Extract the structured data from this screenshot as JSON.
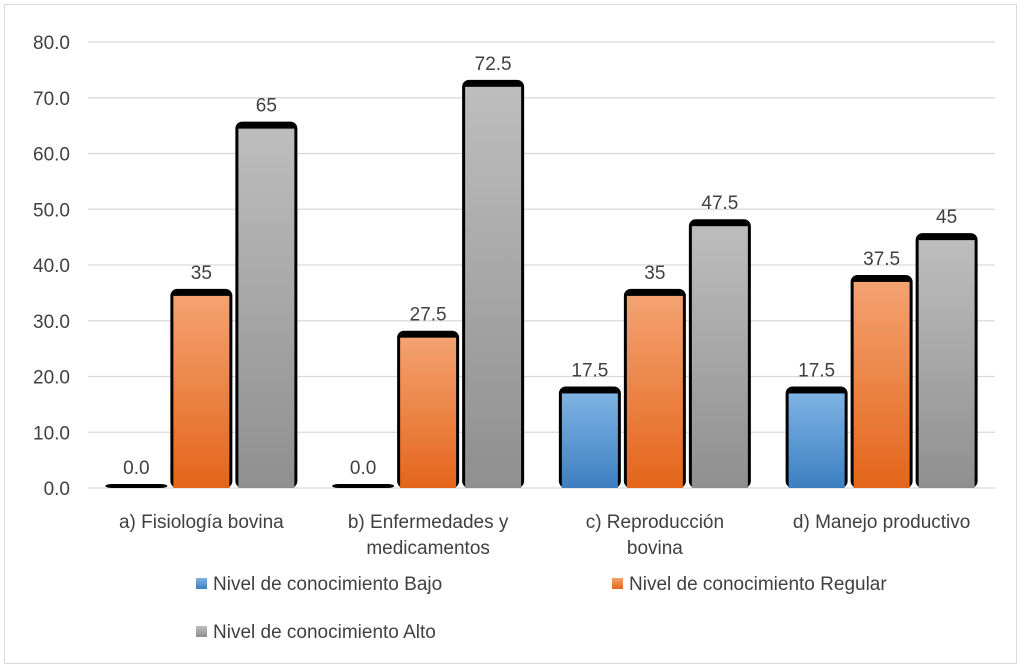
{
  "chart_data": {
    "type": "bar",
    "categories": [
      [
        "a) Fisiología bovina"
      ],
      [
        "b) Enfermedades y",
        "medicamentos"
      ],
      [
        "c)     Reproducción",
        "bovina"
      ],
      [
        "d) Manejo productivo"
      ]
    ],
    "series": [
      {
        "name": "Nivel de conocimiento Bajo",
        "values": [
          0.0,
          0.0,
          17.5,
          17.5
        ],
        "labels": [
          "0.0",
          "0.0",
          "17.5",
          "17.5"
        ],
        "color": "#5b9bd5"
      },
      {
        "name": "Nivel de conocimiento Regular",
        "values": [
          35,
          27.5,
          35,
          37.5
        ],
        "labels": [
          "35",
          "27.5",
          "35",
          "37.5"
        ],
        "color": "#ed7d31"
      },
      {
        "name": "Nivel de conocimiento Alto",
        "values": [
          65,
          72.5,
          47.5,
          45
        ],
        "labels": [
          "65",
          "72.5",
          "47.5",
          "45"
        ],
        "color": "#a5a5a5"
      }
    ],
    "ylim": [
      0,
      80
    ],
    "yticks": [
      "0.0",
      "10.0",
      "20.0",
      "30.0",
      "40.0",
      "50.0",
      "60.0",
      "70.0",
      "80.0"
    ],
    "grid": true,
    "legend": "bottom",
    "title": "",
    "xlabel": "",
    "ylabel": ""
  }
}
